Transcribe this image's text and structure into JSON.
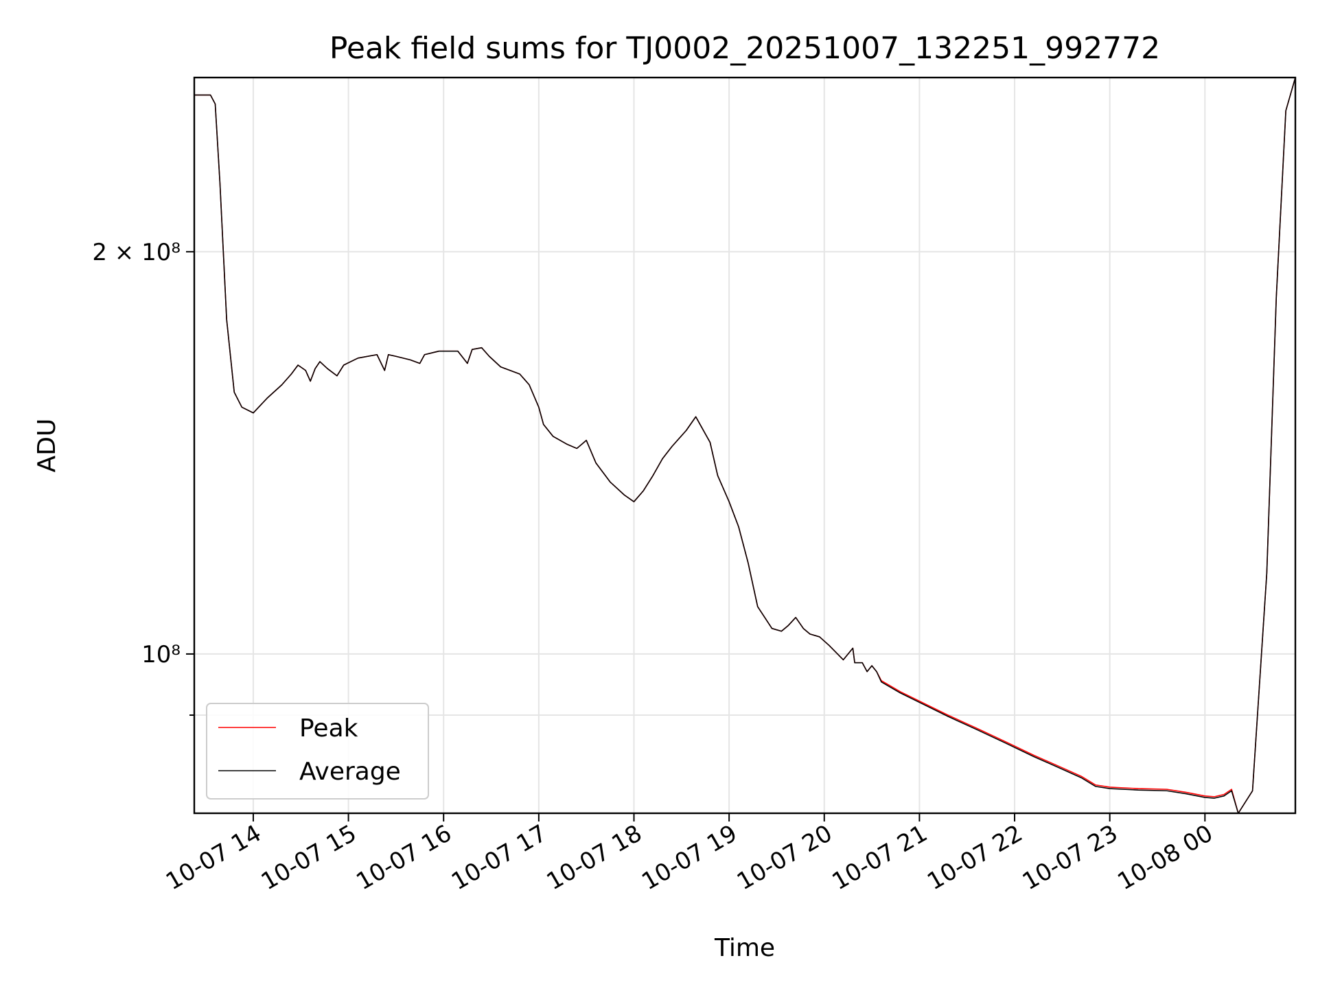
{
  "chart_data": {
    "type": "line",
    "title": "Peak field sums for TJ0002_20251007_132251_992772",
    "xlabel": "Time",
    "ylabel": "ADU",
    "yscale": "log",
    "ylim": [
      76000000,
      270000000
    ],
    "xlim_hours_from_2025_10_07_00_00": [
      13.38,
      24.95
    ],
    "grid": true,
    "legend_position": "lower-left",
    "x_ticks": [
      {
        "hour": 14,
        "label": "10-07 14"
      },
      {
        "hour": 15,
        "label": "10-07 15"
      },
      {
        "hour": 16,
        "label": "10-07 16"
      },
      {
        "hour": 17,
        "label": "10-07 17"
      },
      {
        "hour": 18,
        "label": "10-07 18"
      },
      {
        "hour": 19,
        "label": "10-07 19"
      },
      {
        "hour": 20,
        "label": "10-07 20"
      },
      {
        "hour": 21,
        "label": "10-07 21"
      },
      {
        "hour": 22,
        "label": "10-07 22"
      },
      {
        "hour": 23,
        "label": "10-07 23"
      },
      {
        "hour": 24,
        "label": "10-08 00"
      }
    ],
    "y_major_ticks": [
      {
        "value": 200000000,
        "label": "2 × 10⁸"
      },
      {
        "value": 100000000,
        "label": "10⁸"
      }
    ],
    "y_minor_ticks": [
      90000000
    ],
    "series": [
      {
        "name": "Peak",
        "color": "#ff0000",
        "x": [
          13.38,
          13.55,
          13.6,
          13.65,
          13.72,
          13.8,
          13.88,
          14.0,
          14.15,
          14.3,
          14.4,
          14.47,
          14.55,
          14.6,
          14.65,
          14.7,
          14.78,
          14.88,
          14.95,
          15.1,
          15.3,
          15.38,
          15.42,
          15.5,
          15.65,
          15.75,
          15.8,
          15.95,
          16.15,
          16.25,
          16.3,
          16.4,
          16.48,
          16.6,
          16.8,
          16.9,
          17.0,
          17.05,
          17.15,
          17.3,
          17.4,
          17.5,
          17.6,
          17.75,
          17.9,
          18.0,
          18.1,
          18.2,
          18.3,
          18.4,
          18.55,
          18.65,
          18.8,
          18.88,
          19.0,
          19.1,
          19.2,
          19.3,
          19.45,
          19.55,
          19.62,
          19.7,
          19.78,
          19.85,
          19.95,
          20.05,
          20.2,
          20.3,
          20.32,
          20.4,
          20.45,
          20.5,
          20.55,
          20.6,
          20.8,
          21.0,
          21.3,
          21.6,
          21.9,
          22.2,
          22.5,
          22.7,
          22.85,
          23.0,
          23.3,
          23.6,
          23.8,
          24.0,
          24.1,
          24.2,
          24.28,
          24.35,
          24.5,
          24.65,
          24.75,
          24.85,
          24.95
        ],
        "y": [
          262000000,
          262000000,
          258000000,
          225000000,
          178000000,
          157000000,
          153000000,
          151500000,
          155500000,
          159000000,
          162000000,
          164500000,
          163000000,
          160000000,
          163500000,
          165500000,
          163500000,
          161500000,
          164500000,
          166500000,
          167500000,
          163000000,
          167500000,
          167000000,
          166000000,
          165000000,
          167500000,
          168500000,
          168500000,
          165000000,
          169000000,
          169500000,
          167000000,
          164000000,
          162000000,
          159000000,
          153000000,
          148500000,
          145500000,
          143500000,
          142500000,
          144500000,
          139000000,
          134500000,
          131500000,
          130000000,
          132500000,
          136000000,
          140000000,
          143000000,
          147000000,
          150500000,
          144000000,
          136000000,
          130000000,
          124500000,
          117000000,
          108500000,
          104500000,
          104000000,
          105000000,
          106500000,
          104500000,
          103500000,
          103000000,
          101500000,
          99000000,
          101000000,
          98500000,
          98500000,
          97000000,
          98000000,
          97000000,
          95500000,
          93700000,
          92200000,
          90000000,
          88000000,
          86000000,
          84000000,
          82200000,
          81000000,
          79800000,
          79500000,
          79300000,
          79200000,
          78800000,
          78300000,
          78200000,
          78500000,
          79200000,
          76000000,
          79000000,
          115000000,
          185000000,
          255000000,
          270000000
        ]
      },
      {
        "name": "Average",
        "color": "#000000",
        "x": [
          13.38,
          13.55,
          13.6,
          13.65,
          13.72,
          13.8,
          13.88,
          14.0,
          14.15,
          14.3,
          14.4,
          14.47,
          14.55,
          14.6,
          14.65,
          14.7,
          14.78,
          14.88,
          14.95,
          15.1,
          15.3,
          15.38,
          15.42,
          15.5,
          15.65,
          15.75,
          15.8,
          15.95,
          16.15,
          16.25,
          16.3,
          16.4,
          16.48,
          16.6,
          16.8,
          16.9,
          17.0,
          17.05,
          17.15,
          17.3,
          17.4,
          17.5,
          17.6,
          17.75,
          17.9,
          18.0,
          18.1,
          18.2,
          18.3,
          18.4,
          18.55,
          18.65,
          18.8,
          18.88,
          19.0,
          19.1,
          19.2,
          19.3,
          19.45,
          19.55,
          19.62,
          19.7,
          19.78,
          19.85,
          19.95,
          20.05,
          20.2,
          20.3,
          20.32,
          20.4,
          20.45,
          20.5,
          20.55,
          20.6,
          20.8,
          21.0,
          21.3,
          21.6,
          21.9,
          22.2,
          22.5,
          22.7,
          22.85,
          23.0,
          23.3,
          23.6,
          23.8,
          24.0,
          24.1,
          24.2,
          24.28,
          24.35,
          24.5,
          24.65,
          24.75,
          24.85,
          24.95
        ],
        "y": [
          262000000,
          262000000,
          258000000,
          225000000,
          178000000,
          157000000,
          153000000,
          151500000,
          155500000,
          159000000,
          162000000,
          164500000,
          163000000,
          160000000,
          163500000,
          165500000,
          163500000,
          161500000,
          164500000,
          166500000,
          167500000,
          163000000,
          167500000,
          167000000,
          166000000,
          165000000,
          167500000,
          168500000,
          168500000,
          165000000,
          169000000,
          169500000,
          167000000,
          164000000,
          162000000,
          159000000,
          153000000,
          148500000,
          145500000,
          143500000,
          142500000,
          144500000,
          139000000,
          134500000,
          131500000,
          130000000,
          132500000,
          136000000,
          140000000,
          143000000,
          147000000,
          150500000,
          144000000,
          136000000,
          130000000,
          124500000,
          117000000,
          108500000,
          104500000,
          104000000,
          105000000,
          106500000,
          104500000,
          103500000,
          103000000,
          101500000,
          99000000,
          101000000,
          98500000,
          98500000,
          97000000,
          98000000,
          97000000,
          95300000,
          93500000,
          92000000,
          89800000,
          87800000,
          85800000,
          83800000,
          82000000,
          80800000,
          79600000,
          79300000,
          79100000,
          79000000,
          78600000,
          78100000,
          78000000,
          78300000,
          79000000,
          76000000,
          79000000,
          115000000,
          185000000,
          255000000,
          270000000
        ]
      }
    ]
  }
}
